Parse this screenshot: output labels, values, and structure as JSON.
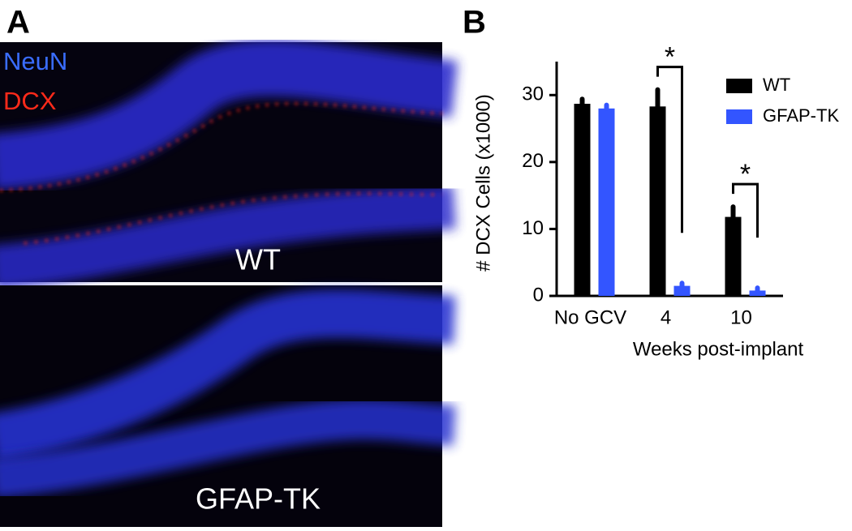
{
  "panel_a": {
    "label": "A",
    "stains": [
      {
        "name": "NeuN",
        "color": "#3a6dff"
      },
      {
        "name": "DCX",
        "color": "#ff2a1a"
      }
    ],
    "images": [
      "WT",
      "GFAP-TK"
    ]
  },
  "panel_b": {
    "label": "B"
  },
  "chart_data": {
    "type": "bar",
    "y_label": "# DCX Cells (x1000)",
    "x_label": "Weeks post-implant",
    "categories": [
      "No GCV",
      "4",
      "10"
    ],
    "series": [
      {
        "name": "WT",
        "color": "#000000",
        "values": [
          28.7,
          28.3,
          11.8
        ],
        "errors": [
          0.7,
          2.5,
          1.5
        ]
      },
      {
        "name": "GFAP-TK",
        "color": "#3355ff",
        "values": [
          28.0,
          1.5,
          0.8
        ],
        "errors": [
          0.5,
          0.4,
          0.4
        ]
      }
    ],
    "annotations": [
      "*",
      "*"
    ],
    "ylim": [
      0,
      35
    ],
    "yticks": [
      0,
      10,
      20,
      30
    ],
    "grid": false,
    "legend": "upper right"
  }
}
